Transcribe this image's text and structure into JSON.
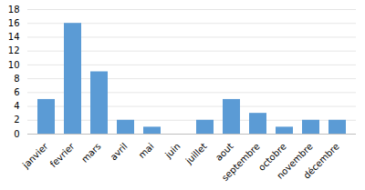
{
  "chart_data": {
    "type": "bar",
    "categories": [
      "janvier",
      "fevrier",
      "mars",
      "avril",
      "mai",
      "juin",
      "juillet",
      "aout",
      "septembre",
      "octobre",
      "novembre",
      "décembre"
    ],
    "values": [
      5,
      16,
      9,
      2,
      1,
      0,
      2,
      5,
      3,
      1,
      2,
      2
    ],
    "color": "#5B9BD5",
    "ylim": [
      0,
      18
    ],
    "yticks": [
      0,
      2,
      4,
      6,
      8,
      10,
      12,
      14,
      16,
      18
    ],
    "grid": true
  }
}
